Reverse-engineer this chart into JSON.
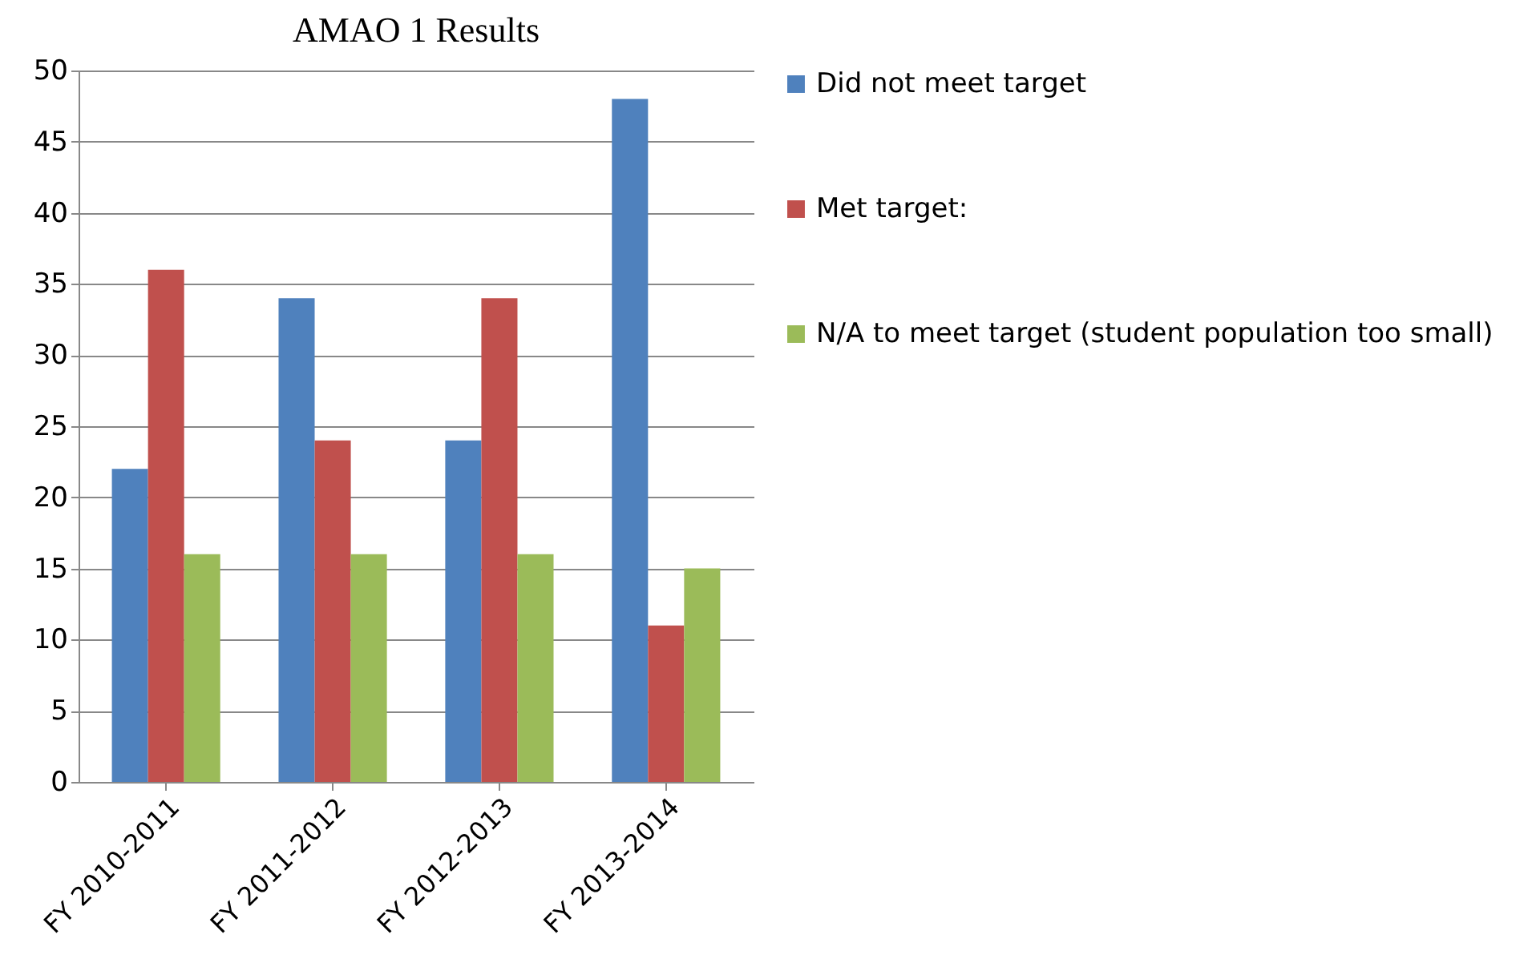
{
  "chart_data": {
    "type": "bar",
    "title": "AMAO 1 Results",
    "categories": [
      "FY 2010-2011",
      "FY 2011-2012",
      "FY 2012-2013",
      "FY 2013-2014"
    ],
    "series": [
      {
        "name": "Did not meet target",
        "color": "#4f81bd",
        "values": [
          22,
          34,
          24,
          48
        ]
      },
      {
        "name": "Met target:",
        "color": "#c0504d",
        "values": [
          36,
          24,
          34,
          11
        ]
      },
      {
        "name": "N/A to meet target (student population too small)",
        "color": "#9bbb59",
        "values": [
          16,
          16,
          16,
          15
        ]
      }
    ],
    "ylim": [
      0,
      50
    ],
    "yticks": [
      0,
      5,
      10,
      15,
      20,
      25,
      30,
      35,
      40,
      45,
      50
    ],
    "grid": true,
    "legend": "right"
  }
}
